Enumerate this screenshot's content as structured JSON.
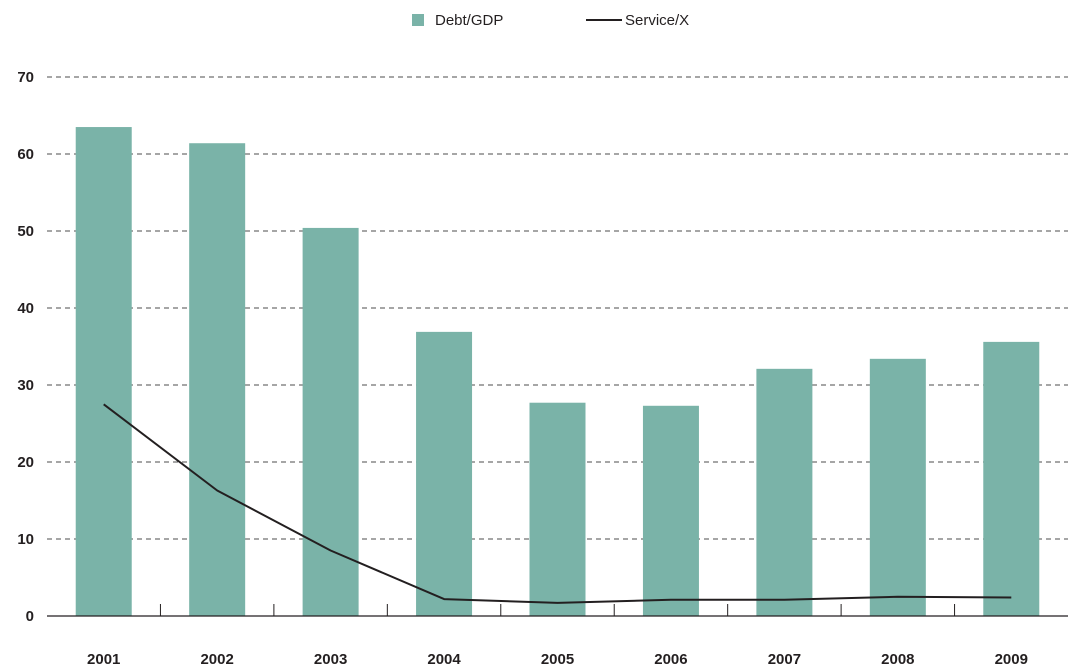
{
  "chart_data": {
    "type": "bar",
    "categories": [
      "2001",
      "2002",
      "2003",
      "2004",
      "2005",
      "2006",
      "2007",
      "2008",
      "2009"
    ],
    "series": [
      {
        "name": "Debt/GDP",
        "kind": "bar",
        "color": "#7ab3a8",
        "values": [
          63.5,
          61.4,
          50.4,
          36.9,
          27.7,
          27.3,
          32.1,
          33.4,
          35.6
        ]
      },
      {
        "name": "Service/X",
        "kind": "line",
        "color": "#231f20",
        "values": [
          27.5,
          16.3,
          8.5,
          2.2,
          1.7,
          2.1,
          2.1,
          2.5,
          2.4
        ]
      }
    ],
    "ylim": [
      0,
      70
    ],
    "yticks": [
      "0",
      "10",
      "20",
      "30",
      "40",
      "50",
      "60",
      "70"
    ],
    "grid": true,
    "legend_position": "top-center",
    "title": "",
    "xlabel": "",
    "ylabel": ""
  }
}
